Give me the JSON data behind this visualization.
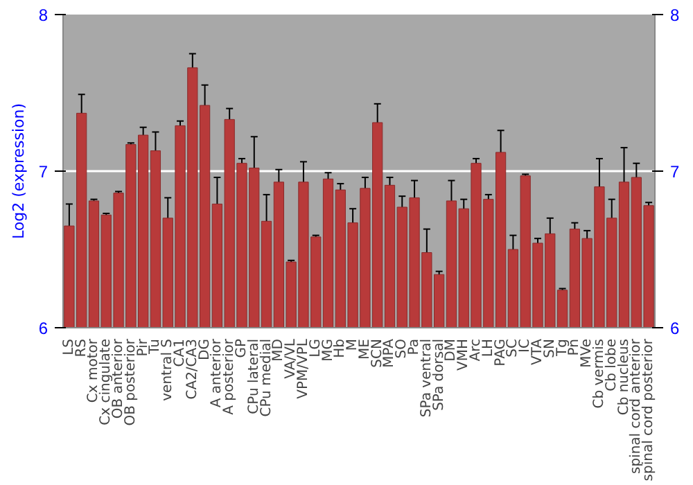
{
  "chart_data": {
    "type": "bar",
    "ylabel": "Log2 (expression)",
    "color": "#b83a3a",
    "categories": [
      "LS",
      "RS",
      "Cx motor",
      "Cx cingulate",
      "OB anterior",
      "OB posterior",
      "Pir",
      "Tu",
      "ventral S",
      "CA1",
      "CA2/CA3",
      "DG",
      "A anterior",
      "A posterior",
      "GP",
      "CPu lateral",
      "CPu medial",
      "MD",
      "VA/VL",
      "VPM/VPL",
      "LG",
      "MG",
      "Hb",
      "M",
      "ME",
      "SCN",
      "MPA",
      "SO",
      "Pa",
      "SPa ventral",
      "SPa dorsal",
      "DM",
      "VMH",
      "Arc",
      "LH",
      "PAG",
      "SC",
      "IC",
      "VTA",
      "SN",
      "Tg",
      "Pn",
      "MVe",
      "Cb vermis",
      "Cb lobe",
      "Cb nucleus",
      "spinal cord anterior",
      "spinal cord posterior"
    ],
    "values": [
      6.65,
      7.37,
      6.81,
      6.72,
      6.86,
      7.17,
      7.23,
      7.13,
      6.7,
      7.29,
      7.66,
      7.42,
      6.79,
      7.33,
      7.05,
      7.02,
      6.68,
      6.93,
      6.42,
      6.93,
      6.58,
      6.95,
      6.88,
      6.67,
      6.89,
      7.31,
      6.91,
      6.77,
      6.83,
      6.48,
      6.34,
      6.81,
      6.76,
      7.05,
      6.82,
      7.12,
      6.5,
      6.97,
      6.54,
      6.6,
      6.24,
      6.63,
      6.57,
      6.9,
      6.7,
      6.93,
      6.96,
      6.78
    ],
    "errors": [
      0.14,
      0.12,
      0.01,
      0.01,
      0.01,
      0.01,
      0.05,
      0.12,
      0.13,
      0.03,
      0.09,
      0.13,
      0.17,
      0.07,
      0.03,
      0.2,
      0.17,
      0.08,
      0.01,
      0.13,
      0.01,
      0.04,
      0.04,
      0.09,
      0.07,
      0.12,
      0.05,
      0.07,
      0.11,
      0.15,
      0.02,
      0.13,
      0.06,
      0.03,
      0.03,
      0.14,
      0.09,
      0.01,
      0.03,
      0.1,
      0.01,
      0.04,
      0.05,
      0.18,
      0.12,
      0.22,
      0.09,
      0.02
    ],
    "ylim": [
      6,
      8
    ],
    "yticks": [
      6,
      7,
      8
    ],
    "y2lim": [
      6,
      8
    ],
    "y2ticks": [
      6,
      7,
      8
    ],
    "grid": "y"
  }
}
